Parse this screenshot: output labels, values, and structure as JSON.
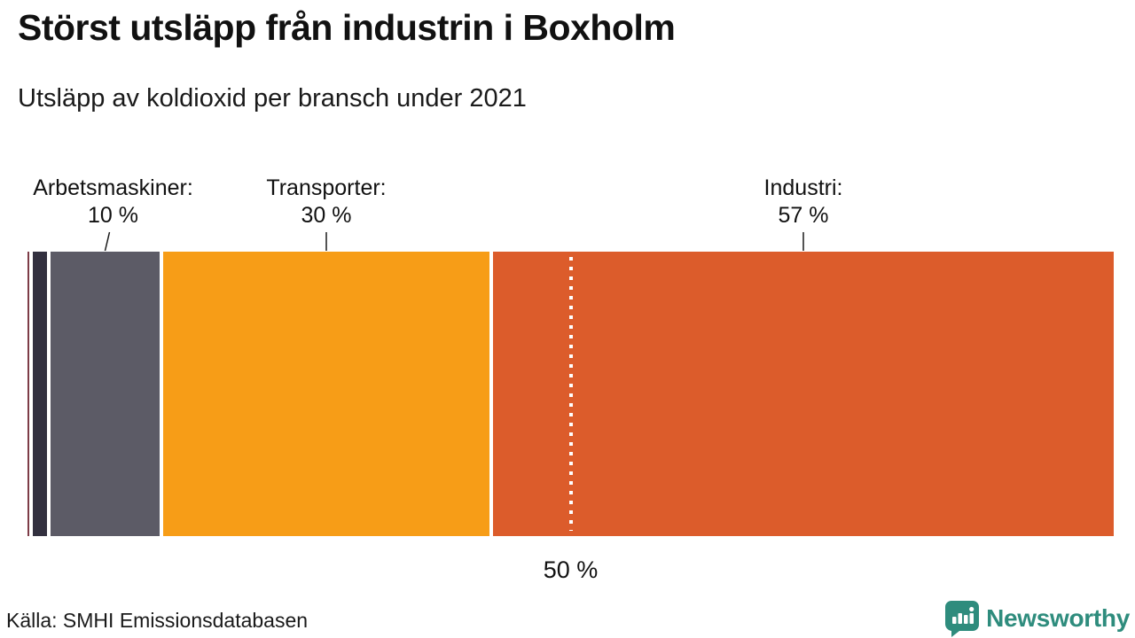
{
  "header": {
    "title": "Störst utsläpp från industrin i Boxholm",
    "subtitle": "Utsläpp av koldioxid per bransch under 2021"
  },
  "footer": {
    "source": "Källa: SMHI Emissionsdatabasen",
    "brand_name": "Newsworthy",
    "brand_icon": "newsworthy-speech-bubble-chart-icon",
    "brand_color": "#2e8c7d"
  },
  "chart_data": {
    "type": "bar",
    "subtype": "single-stacked-horizontal-bar",
    "title": "Störst utsläpp från industrin i Boxholm",
    "subtitle": "Utsläpp av koldioxid per bransch under 2021",
    "unit": "%",
    "axis_range": [
      0,
      100
    ],
    "legend": "none",
    "grid": false,
    "segment_gap_color": "#ffffff",
    "segments": [
      {
        "name": "övrigt-1 (unlabeled)",
        "value": 0.2,
        "color": "#7d3c47",
        "display_label": "",
        "display_value": ""
      },
      {
        "name": "övrigt-2 (unlabeled)",
        "value": 1.3,
        "color": "#32303f",
        "display_label": "",
        "display_value": ""
      },
      {
        "name": "Arbetsmaskiner",
        "value": 10,
        "color": "#5c5b66",
        "display_label": "Arbetsmaskiner:",
        "display_value": "10 %"
      },
      {
        "name": "Transporter",
        "value": 30,
        "color": "#f79d17",
        "display_label": "Transporter:",
        "display_value": "30 %"
      },
      {
        "name": "Industri",
        "value": 57,
        "color": "#dc5c2b",
        "display_label": "Industri:",
        "display_value": "57 %"
      }
    ],
    "reference_line": {
      "value": 50,
      "label": "50 %",
      "style": "dotted",
      "color": "#ffffff"
    }
  }
}
